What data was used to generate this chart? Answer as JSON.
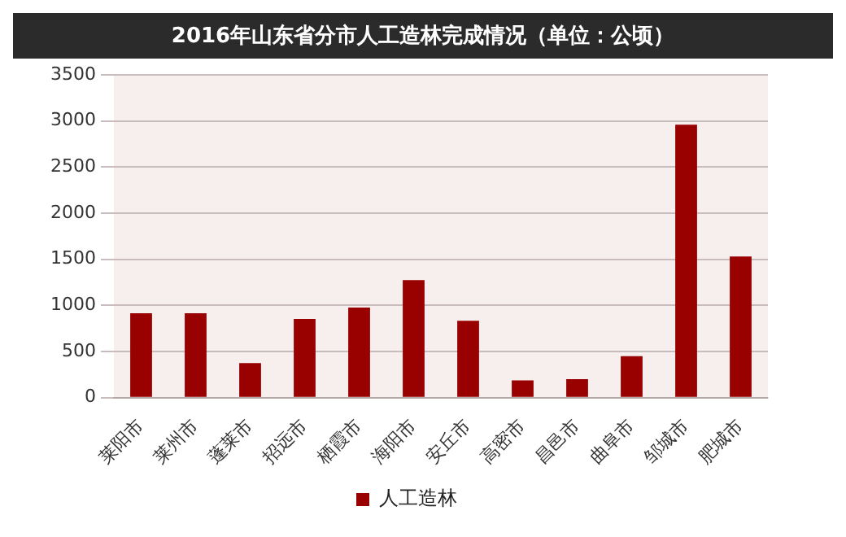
{
  "chart_data": {
    "type": "bar",
    "title": "2016年山东省分市人工造林完成情况（单位：公顷）",
    "categories": [
      "莱阳市",
      "莱州市",
      "蓬莱市",
      "招远市",
      "栖霞市",
      "海阳市",
      "安丘市",
      "高密市",
      "昌邑市",
      "曲阜市",
      "邹城市",
      "肥城市"
    ],
    "series": [
      {
        "name": "人工造林",
        "color": "#990000",
        "values": [
          915,
          915,
          374,
          852,
          977,
          1275,
          832,
          187,
          201,
          450,
          2959,
          1531
        ]
      }
    ],
    "ylim": [
      0,
      3500
    ],
    "yticks": [
      0,
      500,
      1000,
      1500,
      2000,
      2500,
      3000,
      3500
    ],
    "grid": "y",
    "legend": "bottom"
  }
}
